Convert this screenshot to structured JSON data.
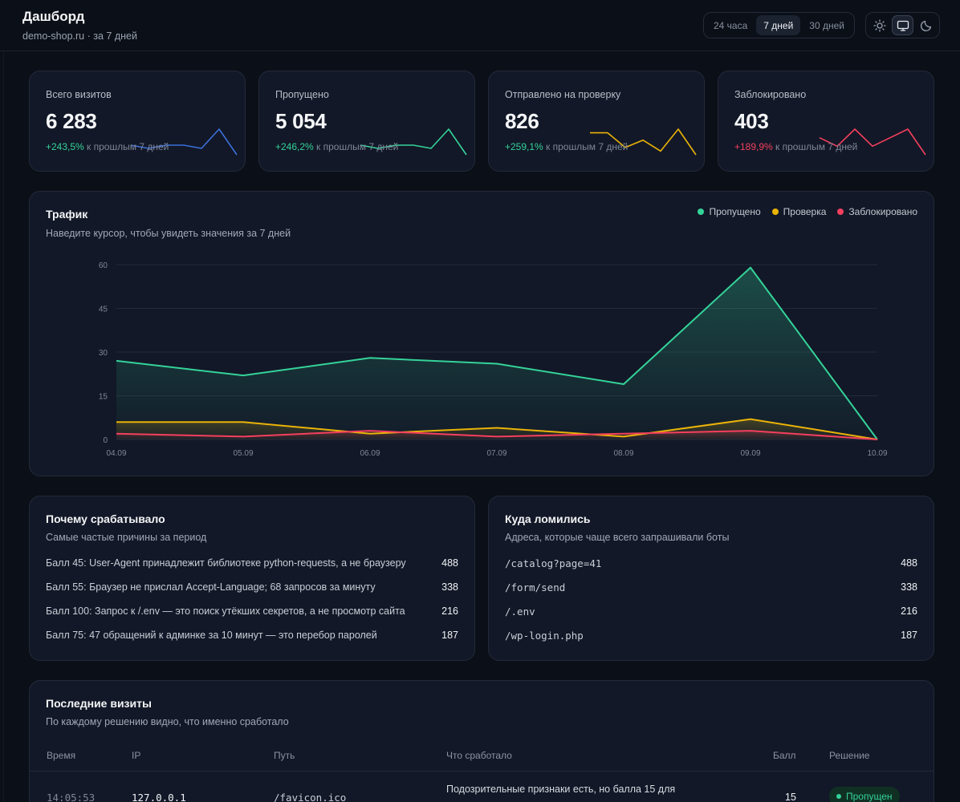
{
  "header": {
    "title": "Дашборд",
    "subtitle": "demo-shop.ru · за 7 дней",
    "periods": [
      "24 часа",
      "7 дней",
      "30 дней"
    ],
    "active_period": "7 дней",
    "theme_icons": [
      "sun-icon",
      "monitor-icon",
      "moon-icon"
    ],
    "active_theme": "monitor-icon"
  },
  "stats": [
    {
      "label": "Всего визитов",
      "value": "6 283",
      "delta": "+243,5%",
      "delta_suffix": " к прошлым 7 дней",
      "trend": "up",
      "color": "#3b6fd8",
      "spark": [
        4,
        3,
        4,
        4,
        3,
        9,
        1
      ]
    },
    {
      "label": "Пропущено",
      "value": "5 054",
      "delta": "+246,2%",
      "delta_suffix": " к прошлым 7 дней",
      "trend": "up",
      "color": "#34d399",
      "spark": [
        4,
        3,
        4,
        4,
        3,
        9,
        1
      ]
    },
    {
      "label": "Отправлено на проверку",
      "value": "826",
      "delta": "+259,1%",
      "delta_suffix": " к прошлым 7 дней",
      "trend": "up",
      "color": "#eab308",
      "spark": [
        6,
        6,
        2,
        4,
        1,
        7,
        0
      ]
    },
    {
      "label": "Заблокировано",
      "value": "403",
      "delta": "+189,9%",
      "delta_suffix": " к прошлым 7 дней",
      "trend": "down",
      "color": "#f43f5e",
      "spark": [
        3,
        2,
        4,
        2,
        3,
        4,
        1
      ]
    }
  ],
  "traffic": {
    "title": "Трафик",
    "subtitle": "Наведите курсор, чтобы увидеть значения за 7 дней"
  },
  "chart_data": {
    "type": "area",
    "title": "Трафик",
    "x": [
      "04.09",
      "05.09",
      "06.09",
      "07.09",
      "08.09",
      "09.09",
      "10.09"
    ],
    "ylim": [
      0,
      60
    ],
    "yticks": [
      0,
      15,
      30,
      45,
      60
    ],
    "grid": true,
    "legend_position": "top-right",
    "series": [
      {
        "name": "Пропущено",
        "color": "#34d399",
        "values": [
          27,
          22,
          28,
          26,
          19,
          59,
          0
        ]
      },
      {
        "name": "Проверка",
        "color": "#eab308",
        "values": [
          6,
          6,
          2,
          4,
          1,
          7,
          0
        ]
      },
      {
        "name": "Заблокировано",
        "color": "#f43f5e",
        "values": [
          2,
          1,
          3,
          1,
          2,
          3,
          0
        ]
      }
    ]
  },
  "reasons": {
    "title": "Почему срабатывало",
    "subtitle": "Самые частые причины за период",
    "items": [
      {
        "label": "Балл 45: User-Agent принадлежит библиотеке python-requests, а не браузеру",
        "count": "488"
      },
      {
        "label": "Балл 55: Браузер не прислал Accept-Language; 68 запросов за минуту",
        "count": "338"
      },
      {
        "label": "Балл 100: Запрос к /.env — это поиск утёкших секретов, а не просмотр сайта",
        "count": "216"
      },
      {
        "label": "Балл 75: 47 обращений к админке за 10 минут — это перебор паролей",
        "count": "187"
      }
    ]
  },
  "paths": {
    "title": "Куда ломились",
    "subtitle": "Адреса, которые чаще всего запрашивали боты",
    "items": [
      {
        "label": "/catalog?page=41",
        "count": "488"
      },
      {
        "label": "/form/send",
        "count": "338"
      },
      {
        "label": "/.env",
        "count": "216"
      },
      {
        "label": "/wp-login.php",
        "count": "187"
      }
    ]
  },
  "visits": {
    "title": "Последние визиты",
    "subtitle": "По каждому решению видно, что именно сработало",
    "columns": [
      "Время",
      "IP",
      "Путь",
      "Что сработало",
      "Балл",
      "Решение"
    ],
    "rows": [
      {
        "time": "14:05:53",
        "ip": "127.0.0.1",
        "path": "/favicon.ico",
        "reason": "Подозрительные признаки есть, но балла 15 для",
        "score": "15",
        "decision": "Пропущен"
      }
    ]
  }
}
